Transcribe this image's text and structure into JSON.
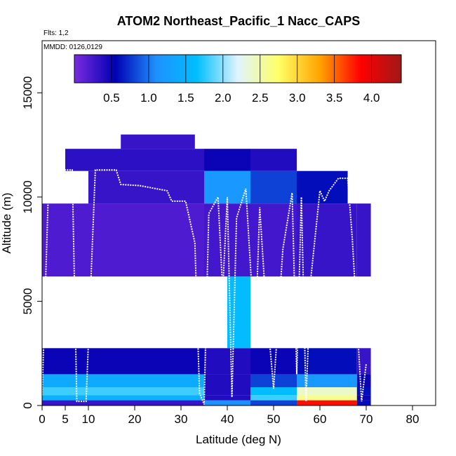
{
  "chart_data": {
    "type": "heatmap",
    "title": "ATOM2 Northeast_Pacific_1 Nacc_CAPS",
    "annotations": [
      "Flts: 1,2",
      "MMDD: 0126,0129"
    ],
    "xlabel": "Latitude (deg N)",
    "ylabel": "Altitude (m)",
    "xlim": [
      0,
      85
    ],
    "ylim": [
      0,
      17500
    ],
    "x_ticks": [
      0,
      5,
      10,
      20,
      30,
      40,
      50,
      60,
      70,
      80
    ],
    "y_ticks": [
      0,
      5000,
      10000,
      15000
    ],
    "colorbar": {
      "range": [
        0,
        4.4
      ],
      "ticks": [
        0.5,
        1.0,
        1.5,
        2.0,
        2.5,
        3.0,
        3.5,
        4.0
      ],
      "tick_labels": [
        "0.5",
        "1.0",
        "1.5",
        "2.0",
        "2.5",
        "3.0",
        "3.5",
        "4.0"
      ],
      "colors": [
        "#7a2be0",
        "#0000b3",
        "#1e90ff",
        "#00bfff",
        "#e0f4ff",
        "#ffff66",
        "#ffa500",
        "#ff0000",
        "#a01818"
      ]
    },
    "layers": [
      {
        "altitude": 125,
        "segments": [
          [
            0,
            35,
            0.3
          ],
          [
            35,
            45,
            1.1
          ],
          [
            45,
            55,
            0.8
          ],
          [
            55,
            68,
            3.8
          ],
          [
            68,
            71,
            0.6
          ]
        ]
      },
      {
        "altitude": 375,
        "segments": [
          [
            0,
            35,
            1.5
          ],
          [
            35,
            45,
            0.4
          ],
          [
            45,
            55,
            1.8
          ],
          [
            55,
            68,
            2.6
          ],
          [
            68,
            71,
            0.5
          ]
        ]
      },
      {
        "altitude": 625,
        "segments": [
          [
            0,
            35,
            1.8
          ],
          [
            35,
            45,
            0.4
          ],
          [
            45,
            55,
            1.6
          ],
          [
            55,
            68,
            2.4
          ],
          [
            68,
            71,
            0.6
          ]
        ]
      },
      {
        "altitude": 1125,
        "segments": [
          [
            0,
            35,
            1.4
          ],
          [
            35,
            45,
            0.4
          ],
          [
            45,
            55,
            0.8
          ],
          [
            55,
            68,
            1.2
          ],
          [
            68,
            71,
            0.5
          ]
        ]
      },
      {
        "altitude": 1875,
        "segments": [
          [
            0,
            35,
            0.5
          ],
          [
            35,
            45,
            0.4
          ],
          [
            45,
            55,
            0.5
          ],
          [
            55,
            68,
            0.6
          ],
          [
            68,
            71,
            0.3
          ]
        ]
      },
      {
        "altitude": 3625,
        "segments": [
          [
            40,
            45,
            1.6
          ]
        ]
      },
      {
        "altitude": 8750,
        "segments": [
          [
            0,
            35,
            0.2
          ],
          [
            35,
            45,
            0.25
          ],
          [
            45,
            55,
            0.25
          ],
          [
            55,
            68,
            0.3
          ],
          [
            68,
            71,
            0.3
          ]
        ]
      },
      {
        "altitude": 10625,
        "segments": [
          [
            10,
            35,
            0.3
          ],
          [
            35,
            45,
            1.2
          ],
          [
            45,
            55,
            0.8
          ],
          [
            55,
            66,
            0.6
          ]
        ]
      },
      {
        "altitude": 11875,
        "segments": [
          [
            5,
            35,
            0.35
          ],
          [
            35,
            45,
            0.5
          ],
          [
            45,
            55,
            0.4
          ]
        ]
      },
      {
        "altitude": 12750,
        "segments": [
          [
            17,
            33,
            0.3
          ]
        ]
      }
    ],
    "flight_track": [
      [
        0,
        500
      ],
      [
        1.5,
        11300
      ],
      [
        6.5,
        11300
      ],
      [
        7.5,
        200
      ],
      [
        9.5,
        200
      ],
      [
        11.5,
        11300
      ],
      [
        16,
        11300
      ],
      [
        17,
        10600
      ],
      [
        21,
        10550
      ],
      [
        27,
        10300
      ],
      [
        28,
        9800
      ],
      [
        31,
        9800
      ],
      [
        33,
        7800
      ],
      [
        34,
        600
      ],
      [
        35,
        50
      ],
      [
        36,
        9200
      ],
      [
        38,
        10000
      ],
      [
        39,
        5500
      ],
      [
        40,
        10000
      ],
      [
        41,
        400
      ],
      [
        42,
        9000
      ],
      [
        44,
        10400
      ],
      [
        46,
        3000
      ],
      [
        47,
        9500
      ],
      [
        48,
        6000
      ],
      [
        50,
        800
      ],
      [
        52,
        7500
      ],
      [
        54,
        10200
      ],
      [
        55,
        1500
      ],
      [
        56,
        10000
      ],
      [
        57,
        200
      ],
      [
        58,
        6000
      ],
      [
        60,
        10300
      ],
      [
        61,
        9800
      ],
      [
        62,
        10300
      ],
      [
        64,
        10900
      ],
      [
        66,
        10900
      ],
      [
        67,
        8000
      ],
      [
        69,
        200
      ],
      [
        70,
        2000
      ]
    ]
  }
}
